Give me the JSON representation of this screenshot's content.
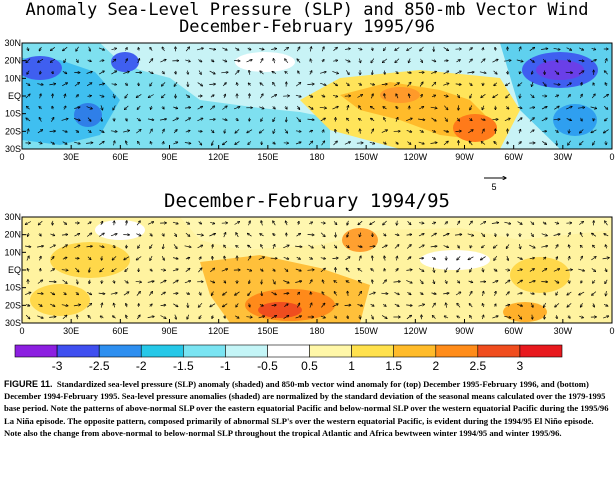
{
  "chart_data": [
    {
      "type": "heatmap",
      "title": "Anomaly Sea-Level Pressure (SLP) and 850-mb Vector Wind",
      "subtitle": "December-February 1995/96",
      "x_tick_labels": [
        "0",
        "30E",
        "60E",
        "90E",
        "120E",
        "150E",
        "180",
        "150W",
        "120W",
        "90W",
        "60W",
        "30W",
        "0"
      ],
      "y_tick_labels": [
        "30N",
        "20N",
        "10N",
        "EQ",
        "10S",
        "20S",
        "30S"
      ],
      "x_range": [
        0,
        360
      ],
      "y_range": [
        -30,
        30
      ],
      "overlay": "850-mb vector wind arrows",
      "colors_note": "positive anomalies east/central equatorial Pacific; negative anomalies western Pacific, Atlantic, Africa"
    },
    {
      "type": "heatmap",
      "title": "December-February 1994/95",
      "x_tick_labels": [
        "0",
        "30E",
        "60E",
        "90E",
        "120E",
        "150E",
        "180",
        "150W",
        "120W",
        "90W",
        "60W",
        "30W",
        "0"
      ],
      "y_tick_labels": [
        "30N",
        "20N",
        "10N",
        "EQ",
        "10S",
        "20S",
        "30S"
      ],
      "x_range": [
        0,
        360
      ],
      "y_range": [
        -30,
        30
      ],
      "overlay": "850-mb vector wind arrows",
      "reference_vector": "5",
      "colors_note": "positive anomalies western Pacific/Australia, Atlantic, Africa"
    }
  ],
  "colorbar": {
    "tick_labels": [
      "-3",
      "-2.5",
      "-2",
      "-1.5",
      "-1",
      "-0.5",
      "0.5",
      "1",
      "1.5",
      "2",
      "2.5",
      "3"
    ],
    "colors": [
      "#8c1fe0",
      "#3f4ff0",
      "#2e8ff0",
      "#26c8e8",
      "#7ae4f2",
      "#c4f5f7",
      "#ffffff",
      "#fff7a8",
      "#ffe14d",
      "#ffbb2a",
      "#ff8c1a",
      "#f04d1e",
      "#e8191e"
    ]
  },
  "caption": {
    "label": "FIGURE 11.",
    "text": "Standardized sea-level pressure (SLP) anomaly (shaded) and 850-mb vector wind anomaly for (top) December 1995-February 1996, and (bottom) December 1994-February 1995. Sea-level pressure anomalies (shaded) are normalized by the standard deviation of the seasonal means calculated over the 1979-1995 base period. Note the patterns of above-normal SLP over the eastern equatorial Pacific and below-normal SLP over the western equatorial Pacific during the 1995/96 La Niña episode. The opposite pattern, composed primarily of abnormal SLP's over the western equatorial Pacific, is evident during the 1994/95 El Niño episode. Note also the change from above-normal to below-normal SLP throughout the tropical Atlantic and Africa bewtween winter 1994/95 and winter 1995/96."
  }
}
